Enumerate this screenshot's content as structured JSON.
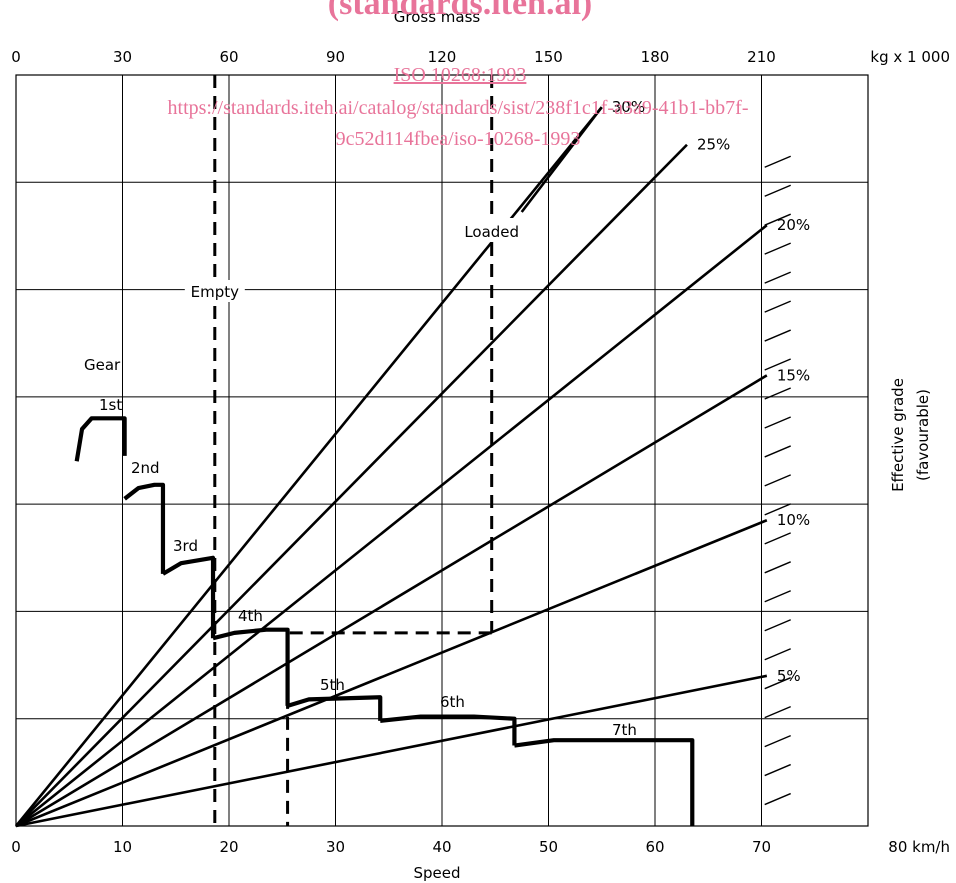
{
  "chart_data": {
    "type": "line",
    "title": "",
    "top_axis": {
      "label": "Gross mass",
      "unit": "kg x 1 000",
      "ticks": [
        "0",
        "30",
        "60",
        "90",
        "120",
        "150",
        "180",
        "210"
      ]
    },
    "xlabel": "Speed",
    "x_unit": "80 km/h",
    "x_ticks": [
      "0",
      "10",
      "20",
      "30",
      "40",
      "50",
      "60",
      "70"
    ],
    "xlim": [
      0,
      80
    ],
    "ylabel_line1": "Effective grade",
    "ylabel_line2": "(favourable)",
    "grade_lines": [
      {
        "name": "30%",
        "end_speed": 55,
        "end_level": 6.7
      },
      {
        "name": "25%",
        "end_speed": 63,
        "end_level": 6.35
      },
      {
        "name": "20%",
        "end_speed": 70.5,
        "end_level": 5.6
      },
      {
        "name": "15%",
        "end_speed": 70.5,
        "end_level": 4.2
      },
      {
        "name": "10%",
        "end_speed": 70.5,
        "end_level": 2.85
      },
      {
        "name": "5%",
        "end_speed": 70.5,
        "end_level": 1.4
      }
    ],
    "empty_mass": 56,
    "loaded_mass": 134,
    "empty_label": "Empty",
    "loaded_label": "Loaded",
    "gear_title": "Gear",
    "gears": [
      {
        "name": "1st",
        "points": [
          [
            5.7,
            3.4
          ],
          [
            6.2,
            3.7
          ],
          [
            7.1,
            3.8
          ],
          [
            10.2,
            3.8
          ],
          [
            10.2,
            3.45
          ]
        ]
      },
      {
        "name": "2nd",
        "points": [
          [
            10.2,
            3.05
          ],
          [
            11.5,
            3.15
          ],
          [
            13.0,
            3.18
          ],
          [
            13.8,
            3.18
          ],
          [
            13.8,
            2.35
          ]
        ]
      },
      {
        "name": "3rd",
        "points": [
          [
            13.8,
            2.35
          ],
          [
            15.5,
            2.45
          ],
          [
            18.5,
            2.5
          ],
          [
            18.5,
            1.75
          ]
        ]
      },
      {
        "name": "4th",
        "points": [
          [
            18.5,
            1.75
          ],
          [
            20.5,
            1.8
          ],
          [
            23.5,
            1.83
          ],
          [
            25.5,
            1.83
          ],
          [
            25.5,
            1.12
          ]
        ]
      },
      {
        "name": "5th",
        "points": [
          [
            25.5,
            1.12
          ],
          [
            27.5,
            1.18
          ],
          [
            34.2,
            1.2
          ],
          [
            34.2,
            0.98
          ]
        ]
      },
      {
        "name": "6th",
        "points": [
          [
            34.2,
            0.98
          ],
          [
            38.0,
            1.02
          ],
          [
            43.0,
            1.02
          ],
          [
            46.8,
            1.0
          ],
          [
            46.8,
            0.75
          ]
        ]
      },
      {
        "name": "7th",
        "points": [
          [
            46.8,
            0.75
          ],
          [
            50.5,
            0.8
          ],
          [
            63.5,
            0.8
          ],
          [
            63.5,
            0.0
          ]
        ]
      }
    ],
    "example_path": {
      "loaded_top_level": 6.6,
      "loaded_grade_level": 1.8,
      "horizontal_to_speed": 25.5
    },
    "grid": true
  },
  "watermark": {
    "line0": "(standards.iteh.ai)",
    "line1": "ISO 10268:1993",
    "line2": "https://standards.iteh.ai/catalog/standards/sist/238f1c1f-a3a9-41b1-bb7f-",
    "line3": "9c52d114fbea/iso-10268-1993"
  }
}
